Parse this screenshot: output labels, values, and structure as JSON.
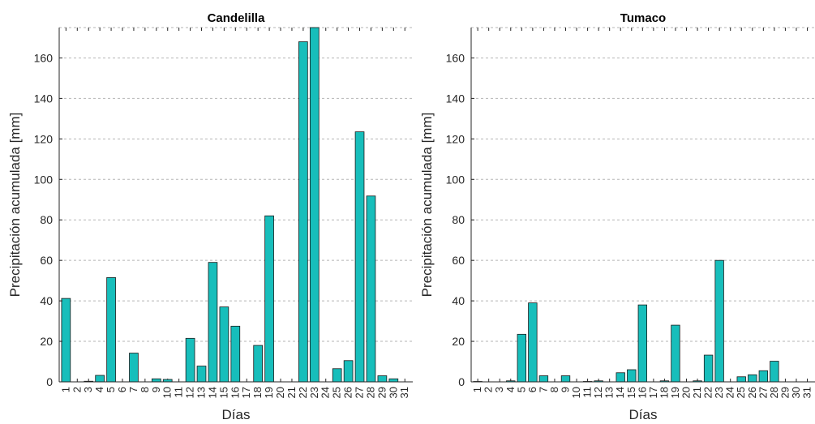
{
  "chart_data": [
    {
      "type": "bar",
      "title": "Candelilla",
      "xlabel": "Días",
      "ylabel": "Precipitación acumulada [mm]",
      "ylim": [
        0,
        175
      ],
      "yticks": [
        0,
        20,
        40,
        60,
        80,
        100,
        120,
        140,
        160
      ],
      "grid": "horizontal dashed",
      "bar_color": "#17bebb",
      "categories": [
        "1",
        "2",
        "3",
        "4",
        "5",
        "6",
        "7",
        "8",
        "9",
        "10",
        "11",
        "12",
        "13",
        "14",
        "15",
        "16",
        "17",
        "18",
        "19",
        "20",
        "21",
        "22",
        "23",
        "24",
        "25",
        "26",
        "27",
        "28",
        "29",
        "30",
        "31"
      ],
      "values": [
        41.2,
        0,
        0.3,
        3.2,
        51.5,
        0,
        14.2,
        0,
        1.5,
        1.2,
        0,
        21.5,
        7.8,
        59,
        37,
        27.5,
        0,
        18,
        82,
        0,
        0,
        168,
        175,
        0,
        6.5,
        10.5,
        123.5,
        91.8,
        3,
        1.5,
        0
      ]
    },
    {
      "type": "bar",
      "title": "Tumaco",
      "xlabel": "Días",
      "ylabel": "Precipitación acumulada [mm]",
      "ylim": [
        0,
        175
      ],
      "yticks": [
        0,
        20,
        40,
        60,
        80,
        100,
        120,
        140,
        160
      ],
      "grid": "horizontal dashed",
      "bar_color": "#17bebb",
      "categories": [
        "1",
        "2",
        "3",
        "4",
        "5",
        "6",
        "7",
        "8",
        "9",
        "10",
        "11",
        "12",
        "13",
        "14",
        "15",
        "16",
        "17",
        "18",
        "19",
        "20",
        "21",
        "22",
        "23",
        "24",
        "25",
        "26",
        "27",
        "28",
        "29",
        "30",
        "31"
      ],
      "values": [
        0.2,
        0,
        0,
        0.5,
        23.5,
        39,
        3,
        0,
        3,
        0,
        0.2,
        0.5,
        0,
        4.5,
        6,
        38,
        0,
        0.5,
        28,
        0,
        0.5,
        13.2,
        60,
        0,
        2.5,
        3.5,
        5.5,
        10.2,
        0,
        0,
        0
      ]
    }
  ]
}
